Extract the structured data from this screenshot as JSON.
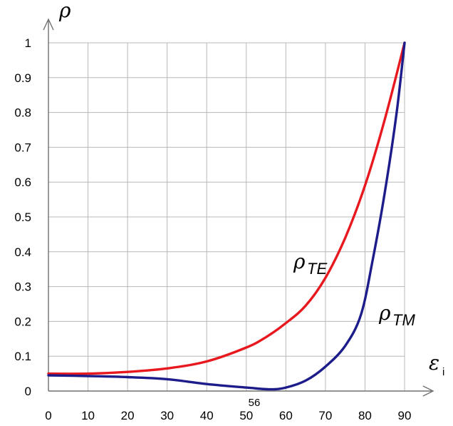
{
  "chart_data": {
    "type": "line",
    "xlim": [
      0,
      90
    ],
    "ylim": [
      0,
      1
    ],
    "x_ticks": [
      "0",
      "10",
      "20",
      "30",
      "40",
      "50",
      "60",
      "70",
      "80",
      "90"
    ],
    "y_ticks": [
      "0",
      "0.1",
      "0.2",
      "0.3",
      "0.4",
      "0.5",
      "0.6",
      "0.7",
      "0.8",
      "0.9",
      "1"
    ],
    "xlabel": {
      "main": "ε",
      "sub": "i"
    },
    "ylabel": "ρ",
    "grid": true,
    "annotation": "56",
    "series": [
      {
        "name": "TE",
        "label_main": "ρ",
        "label_sub": "TE",
        "color": "#e8181f",
        "points": [
          [
            0,
            0.05
          ],
          [
            10,
            0.05
          ],
          [
            20,
            0.055
          ],
          [
            30,
            0.065
          ],
          [
            40,
            0.085
          ],
          [
            50,
            0.125
          ],
          [
            55,
            0.155
          ],
          [
            60,
            0.195
          ],
          [
            65,
            0.245
          ],
          [
            70,
            0.325
          ],
          [
            75,
            0.44
          ],
          [
            80,
            0.59
          ],
          [
            85,
            0.78
          ],
          [
            90,
            1.0
          ]
        ]
      },
      {
        "name": "TM",
        "label_main": "ρ",
        "label_sub": "TM",
        "color": "#1c1c8a",
        "points": [
          [
            0,
            0.045
          ],
          [
            10,
            0.043
          ],
          [
            20,
            0.04
          ],
          [
            30,
            0.034
          ],
          [
            40,
            0.02
          ],
          [
            50,
            0.01
          ],
          [
            56,
            0.005
          ],
          [
            60,
            0.01
          ],
          [
            65,
            0.03
          ],
          [
            70,
            0.07
          ],
          [
            75,
            0.13
          ],
          [
            79,
            0.22
          ],
          [
            82,
            0.38
          ],
          [
            85,
            0.57
          ],
          [
            88,
            0.8
          ],
          [
            90,
            1.0
          ]
        ]
      }
    ]
  }
}
